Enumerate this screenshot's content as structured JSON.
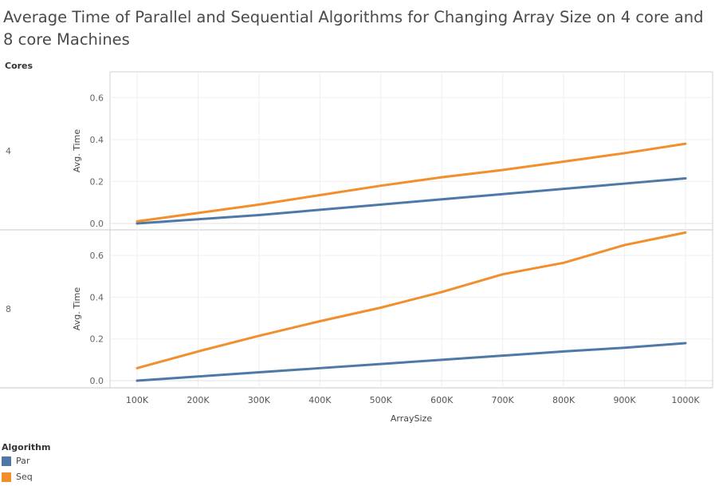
{
  "title": "Average Time of Parallel and Sequential Algorithms for Changing Array Size on 4 core and 8 core Machines",
  "row_header": "Cores",
  "legend": {
    "title": "Algorithm",
    "items": [
      {
        "label": "Par",
        "color": "#4e79a7"
      },
      {
        "label": "Seq",
        "color": "#f28e2b"
      }
    ]
  },
  "chart_data": {
    "type": "line",
    "xlabel": "ArraySize",
    "ylabel": "Avg. Time",
    "categories": [
      "100K",
      "200K",
      "300K",
      "400K",
      "500K",
      "600K",
      "700K",
      "800K",
      "900K",
      "1000K"
    ],
    "ylim": [
      0,
      0.7
    ],
    "yticks": [
      "0.0",
      "0.2",
      "0.4",
      "0.6"
    ],
    "grid": true,
    "legend_position": "bottom-left",
    "panels": [
      {
        "row_label": "4",
        "series": [
          {
            "name": "Par",
            "color": "#4e79a7",
            "values": [
              0.0,
              0.02,
              0.04,
              0.065,
              0.09,
              0.115,
              0.14,
              0.165,
              0.19,
              0.215
            ]
          },
          {
            "name": "Seq",
            "color": "#f28e2b",
            "values": [
              0.01,
              0.05,
              0.09,
              0.135,
              0.18,
              0.22,
              0.255,
              0.295,
              0.335,
              0.38
            ]
          }
        ]
      },
      {
        "row_label": "8",
        "series": [
          {
            "name": "Par",
            "color": "#4e79a7",
            "values": [
              0.0,
              0.02,
              0.04,
              0.06,
              0.08,
              0.1,
              0.12,
              0.14,
              0.158,
              0.18
            ]
          },
          {
            "name": "Seq",
            "color": "#f28e2b",
            "values": [
              0.06,
              0.14,
              0.215,
              0.285,
              0.35,
              0.425,
              0.51,
              0.565,
              0.65,
              0.71
            ]
          }
        ]
      }
    ]
  }
}
